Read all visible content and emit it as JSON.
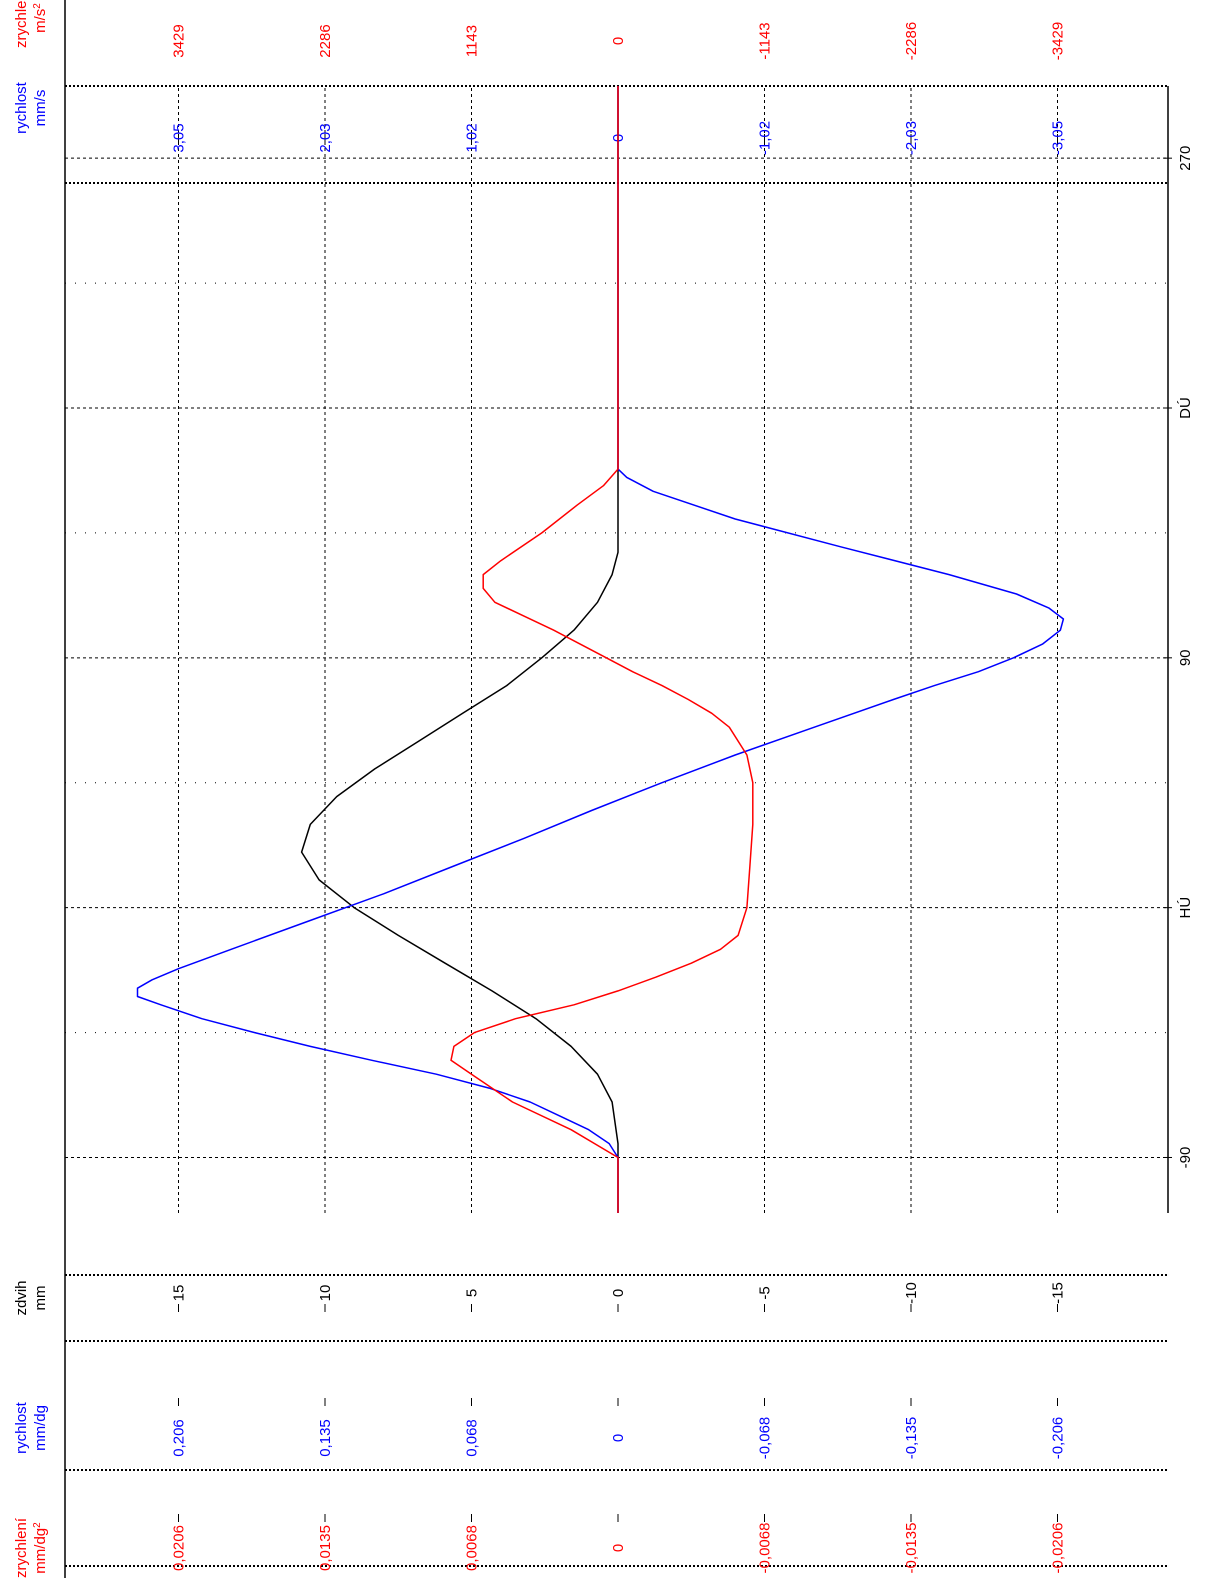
{
  "chart_data": {
    "type": "line",
    "axes": {
      "zrychleni_ms2": {
        "label_line1": "zrychlení",
        "label_line2": "m/s",
        "label_sup": "2",
        "color": "#ff0000",
        "ticks": [
          "3429",
          "2286",
          "1143",
          "0",
          "-1143",
          "-2286",
          "-3429"
        ]
      },
      "rychlost_mms": {
        "label_line1": "rychlost",
        "label_line2": "mm/s",
        "color": "#0000ff",
        "ticks": [
          "3,05",
          "2,03",
          "1,02",
          "0",
          "-1,02",
          "-2,03",
          "-3,05"
        ]
      },
      "zdvih_mm": {
        "label_line1": "zdvih",
        "label_line2": "mm",
        "color": "#000000",
        "ticks": [
          "15",
          "10",
          "5",
          "0",
          "-5",
          "-10",
          "-15"
        ]
      },
      "rychlost_mmdg": {
        "label_line1": "rychlost",
        "label_line2": "mm/dg",
        "color": "#0000ff",
        "ticks": [
          "0,206",
          "0,135",
          "0,068",
          "0",
          "-0,068",
          "-0,135",
          "-0,206"
        ]
      },
      "zrychleni_mmdg2": {
        "label_line1": "zrychlení",
        "label_line2": "mm/dg",
        "label_sup": "2",
        "color": "#ff0000",
        "ticks": [
          "0,0206",
          "0,0135",
          "0,0068",
          "0",
          "-0,0068",
          "-0,0135",
          "-0,0206"
        ]
      }
    },
    "angle_ticks": [
      "-90",
      "HÚ",
      "90",
      "DÚ",
      "270"
    ],
    "angle_range": [
      -110,
      296
    ],
    "zdvih_range": [
      -19,
      19
    ],
    "grid": true,
    "series": [
      {
        "key": "zdvih",
        "color": "#000000",
        "points": [
          [
            -110,
            0
          ],
          [
            -85,
            0
          ],
          [
            -70,
            0.2
          ],
          [
            -60,
            0.7
          ],
          [
            -50,
            1.6
          ],
          [
            -40,
            2.8
          ],
          [
            -30,
            4.3
          ],
          [
            -20,
            5.9
          ],
          [
            -10,
            7.5
          ],
          [
            0,
            9
          ],
          [
            10,
            10.2
          ],
          [
            20,
            10.8
          ],
          [
            30,
            10.5
          ],
          [
            40,
            9.6
          ],
          [
            50,
            8.3
          ],
          [
            60,
            6.8
          ],
          [
            70,
            5.3
          ],
          [
            80,
            3.8
          ],
          [
            90,
            2.6
          ],
          [
            100,
            1.5
          ],
          [
            110,
            0.7
          ],
          [
            120,
            0.2
          ],
          [
            128,
            0
          ],
          [
            160,
            0
          ],
          [
            296,
            0
          ]
        ]
      },
      {
        "key": "rychlost",
        "color": "#0000ff",
        "points": [
          [
            -110,
            0
          ],
          [
            -90,
            0
          ],
          [
            -85,
            0.3
          ],
          [
            -80,
            1
          ],
          [
            -75,
            2
          ],
          [
            -70,
            3
          ],
          [
            -65,
            4.4
          ],
          [
            -60,
            6.2
          ],
          [
            -55,
            8.4
          ],
          [
            -50,
            10.5
          ],
          [
            -45,
            12.4
          ],
          [
            -40,
            14.2
          ],
          [
            -35,
            15.6
          ],
          [
            -32,
            16.4
          ],
          [
            -29,
            16.4
          ],
          [
            -26,
            15.9
          ],
          [
            -22,
            15
          ],
          [
            -15,
            13.2
          ],
          [
            -5,
            10.6
          ],
          [
            5,
            8
          ],
          [
            15,
            5.6
          ],
          [
            25,
            3.2
          ],
          [
            35,
            0.9
          ],
          [
            45,
            -1.5
          ],
          [
            55,
            -4
          ],
          [
            65,
            -6.7
          ],
          [
            75,
            -9.4
          ],
          [
            80,
            -10.8
          ],
          [
            85,
            -12.3
          ],
          [
            90,
            -13.5
          ],
          [
            95,
            -14.5
          ],
          [
            100,
            -15.1
          ],
          [
            104,
            -15.2
          ],
          [
            108,
            -14.7
          ],
          [
            113,
            -13.6
          ],
          [
            120,
            -11.3
          ],
          [
            130,
            -7.6
          ],
          [
            140,
            -4
          ],
          [
            150,
            -1.2
          ],
          [
            155,
            -0.3
          ],
          [
            158,
            0
          ],
          [
            160,
            0
          ],
          [
            296,
            0
          ]
        ]
      },
      {
        "key": "zrychleni",
        "color": "#ff0000",
        "points": [
          [
            -110,
            0
          ],
          [
            -90,
            0
          ],
          [
            -80,
            1.6
          ],
          [
            -70,
            3.6
          ],
          [
            -60,
            5
          ],
          [
            -55,
            5.7
          ],
          [
            -50,
            5.6
          ],
          [
            -45,
            4.9
          ],
          [
            -40,
            3.5
          ],
          [
            -35,
            1.5
          ],
          [
            -30,
            0
          ],
          [
            -25,
            -1.3
          ],
          [
            -20,
            -2.5
          ],
          [
            -15,
            -3.5
          ],
          [
            -10,
            -4.1
          ],
          [
            0,
            -4.4
          ],
          [
            15,
            -4.5
          ],
          [
            30,
            -4.6
          ],
          [
            45,
            -4.6
          ],
          [
            55,
            -4.4
          ],
          [
            65,
            -3.8
          ],
          [
            70,
            -3.2
          ],
          [
            75,
            -2.4
          ],
          [
            80,
            -1.5
          ],
          [
            85,
            -0.5
          ],
          [
            90,
            0.4
          ],
          [
            95,
            1.3
          ],
          [
            100,
            2.2
          ],
          [
            105,
            3.2
          ],
          [
            110,
            4.2
          ],
          [
            115,
            4.6
          ],
          [
            120,
            4.6
          ],
          [
            125,
            4
          ],
          [
            135,
            2.6
          ],
          [
            145,
            1.4
          ],
          [
            152,
            0.5
          ],
          [
            158,
            0
          ],
          [
            160,
            0
          ],
          [
            296,
            0
          ]
        ]
      }
    ]
  }
}
